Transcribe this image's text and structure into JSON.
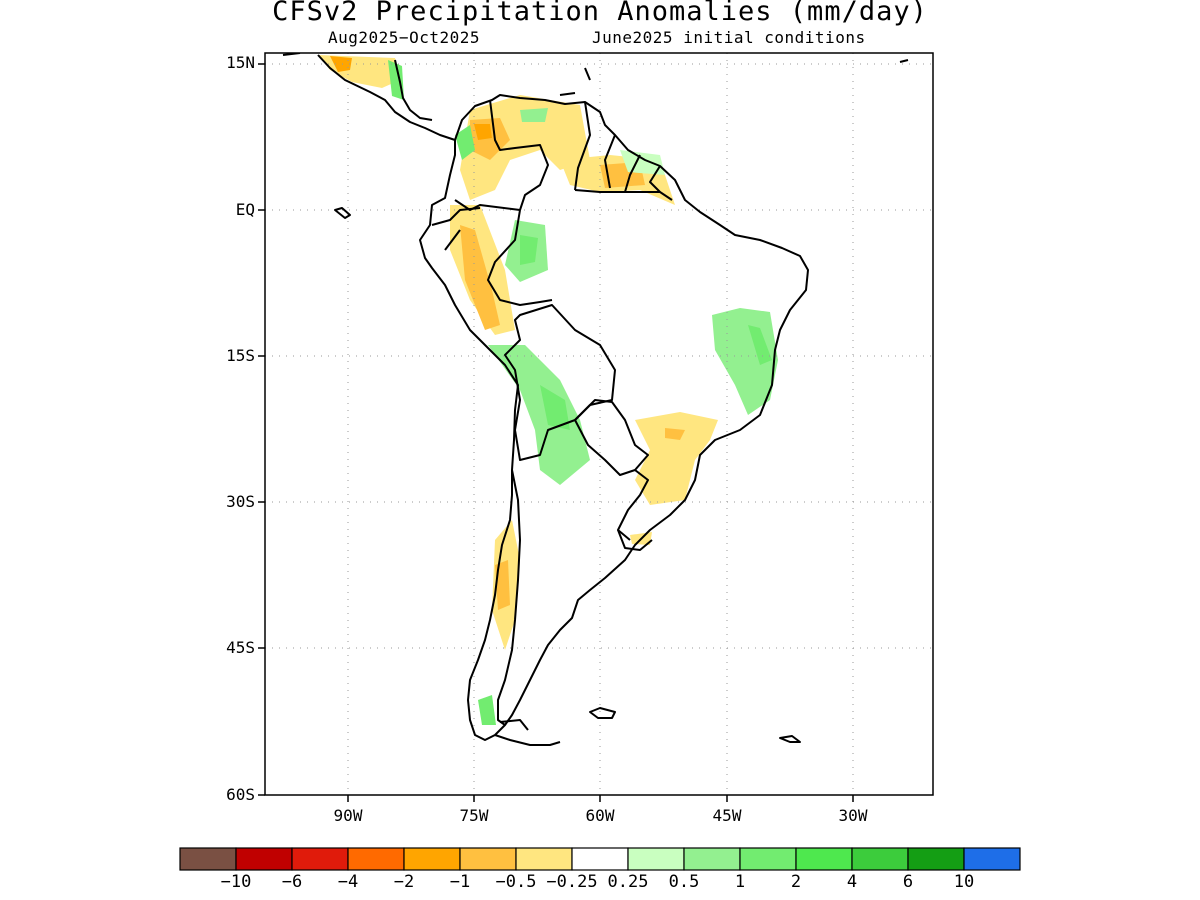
{
  "title": "CFSv2 Precipitation Anomalies (mm/day)",
  "subtitle_left": "Aug2025−Oct2025",
  "subtitle_right": "June2025 initial conditions",
  "map": {
    "region": "South America",
    "lat_range": [
      "15N",
      "60S"
    ],
    "lon_range": [
      "~100W",
      "~20W"
    ],
    "lat_labels": [
      "15N",
      "EQ",
      "15S",
      "30S",
      "45S",
      "60S"
    ],
    "lon_labels": [
      "90W",
      "75W",
      "60W",
      "45W",
      "30W"
    ],
    "gridlines": "dotted",
    "land_color": "#ffffff",
    "coast_color": "#000000"
  },
  "colorbar": {
    "colors": [
      "#7a5043",
      "#c00000",
      "#e01b0b",
      "#ff6a00",
      "#ffa500",
      "#ffc040",
      "#ffe680",
      "#ffffff",
      "#c9ffc0",
      "#93f090",
      "#72ec70",
      "#4ee84e",
      "#3ccc3c",
      "#149e14",
      "#1e6ee8"
    ],
    "labels": [
      "−10",
      "−6",
      "−4",
      "−2",
      "−1",
      "−0.5",
      "−0.25",
      "0.25",
      "0.5",
      "1",
      "2",
      "4",
      "6",
      "10"
    ]
  },
  "anomaly_regions": [
    {
      "area": "Central America",
      "sign": "dry",
      "level": "-0.5"
    },
    {
      "area": "Colombia / Venezuela",
      "sign": "dry",
      "level": "-1"
    },
    {
      "area": "Guianas",
      "sign": "dry",
      "level": "-0.5"
    },
    {
      "area": "Andes of Ecuador / Peru",
      "sign": "dry",
      "level": "-1"
    },
    {
      "area": "Western Amazon",
      "sign": "wet",
      "level": "0.5"
    },
    {
      "area": "Bolivia / N Argentina",
      "sign": "wet",
      "level": "0.5"
    },
    {
      "area": "Eastern Brazil",
      "sign": "wet",
      "level": "0.5"
    },
    {
      "area": "Southern Brazil / Paraguay",
      "sign": "dry",
      "level": "-0.5"
    },
    {
      "area": "Central Chile",
      "sign": "dry",
      "level": "-1"
    },
    {
      "area": "Southern Patagonia",
      "sign": "wet",
      "level": "0.5"
    }
  ]
}
